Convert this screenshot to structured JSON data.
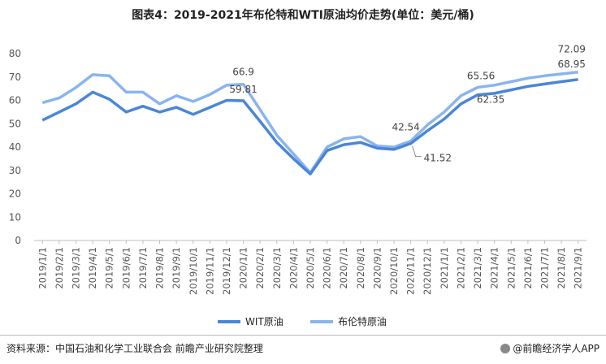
{
  "title": "图表4：2019-2021年布伦特和WTI原油均价走势(单位：美元/桶)",
  "source": "资料来源：中国石油和化学工业联合会 前瞻产业研究院整理",
  "brand": "@前瞻经济学人APP",
  "chart_data": {
    "type": "line",
    "title": "图表4：2019-2021年布伦特和WTI原油均价走势(单位：美元/桶)",
    "xlabel": "",
    "ylabel": "",
    "ylim": [
      0,
      80
    ],
    "yticks": [
      "0",
      "10",
      "20",
      "30",
      "40",
      "50",
      "60",
      "70",
      "80"
    ],
    "grid": false,
    "legend_position": "bottom",
    "categories": [
      "2019/1/1",
      "2019/2/1",
      "2019/3/1",
      "2019/4/1",
      "2019/5/1",
      "2019/6/1",
      "2019/7/1",
      "2019/8/1",
      "2019/9/1",
      "2019/10/1",
      "2019/11/1",
      "2019/12/1",
      "2020/1/1",
      "2020/2/1",
      "2020/3/1",
      "2020/4/1",
      "2020/5/1",
      "2020/6/1",
      "2020/7/1",
      "2020/8/1",
      "2020/9/1",
      "2020/10/1",
      "2020/11/1",
      "2020/12/1",
      "2021/1/1",
      "2021/2/1",
      "2021/3/1",
      "2021/4/1",
      "2021/5/1",
      "2021/6/1",
      "2021/7/1",
      "2021/8/1",
      "2021/9/1"
    ],
    "series": [
      {
        "name": "WIT原油",
        "color": "#4a86d8",
        "values": [
          51.5,
          55,
          58.5,
          63.5,
          60.5,
          55,
          57.5,
          55,
          57,
          54,
          57,
          60,
          59.81,
          51,
          42,
          35,
          28.5,
          38.5,
          41,
          42,
          39.5,
          39,
          41.52,
          47,
          52,
          58.5,
          62.35,
          63,
          64.5,
          66,
          67,
          68,
          68.95
        ]
      },
      {
        "name": "布伦特原油",
        "color": "#8ab4ee",
        "values": [
          59,
          61,
          65.5,
          71,
          70.5,
          63.5,
          63.5,
          58.5,
          62,
          59.5,
          62.5,
          66.5,
          66.9,
          56,
          45,
          37,
          29,
          40,
          43.5,
          44.5,
          40.5,
          40,
          42.54,
          49.5,
          55,
          62,
          65.56,
          66.5,
          68,
          69.5,
          70.5,
          71.3,
          72.09
        ]
      }
    ],
    "annotations": [
      {
        "text": "66.9",
        "series": "布伦特原油",
        "category": "2020/1/1"
      },
      {
        "text": "59.81",
        "series": "WIT原油",
        "category": "2020/1/1"
      },
      {
        "text": "42.54",
        "series": "布伦特原油",
        "category": "2020/11/1"
      },
      {
        "text": "41.52",
        "series": "WIT原油",
        "category": "2020/11/1"
      },
      {
        "text": "65.56",
        "series": "布伦特原油",
        "category": "2021/3/1"
      },
      {
        "text": "62.35",
        "series": "WIT原油",
        "category": "2021/3/1"
      },
      {
        "text": "72.09",
        "series": "布伦特原油",
        "category": "2021/9/1"
      },
      {
        "text": "68.95",
        "series": "WIT原油",
        "category": "2021/9/1"
      }
    ]
  }
}
